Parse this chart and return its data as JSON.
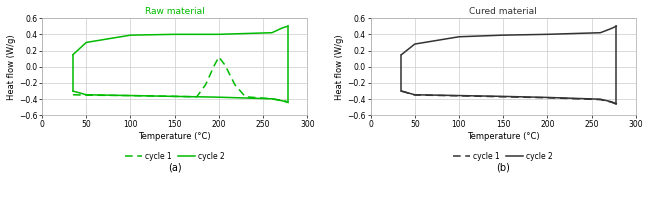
{
  "panel_a": {
    "title": "Raw material",
    "title_color": "#00bb00",
    "xlabel": "Temperature (°C)",
    "ylabel": "Heat flow (W/g)",
    "xlim": [
      0,
      300
    ],
    "ylim": [
      -0.6,
      0.6
    ],
    "xticks": [
      0,
      50,
      100,
      150,
      200,
      250,
      300
    ],
    "yticks": [
      -0.6,
      -0.4,
      -0.2,
      0,
      0.2,
      0.4,
      0.6
    ],
    "cycle1_color": "#00bb00",
    "cycle2_color": "#00bb00",
    "cycle2_upper_x": [
      35,
      50,
      100,
      150,
      200,
      260,
      272,
      278
    ],
    "cycle2_upper_y": [
      0.15,
      0.3,
      0.39,
      0.4,
      0.4,
      0.42,
      0.48,
      0.5
    ],
    "cycle2_lower_x": [
      35,
      50,
      100,
      150,
      175,
      200,
      260,
      272,
      278
    ],
    "cycle2_lower_y": [
      -0.3,
      -0.345,
      -0.355,
      -0.365,
      -0.37,
      -0.375,
      -0.395,
      -0.42,
      -0.44
    ],
    "cycle1_x": [
      35,
      50,
      100,
      150,
      175,
      185,
      195,
      200,
      207,
      218,
      230,
      260,
      275,
      278
    ],
    "cycle1_y": [
      -0.345,
      -0.35,
      -0.355,
      -0.365,
      -0.37,
      -0.22,
      0.02,
      0.12,
      0.02,
      -0.22,
      -0.37,
      -0.395,
      -0.42,
      -0.44
    ],
    "label": "(a)"
  },
  "panel_b": {
    "title": "Cured material",
    "title_color": "#333333",
    "xlabel": "Temperature (°C)",
    "ylabel": "Heat flow (W/g)",
    "xlim": [
      0,
      300
    ],
    "ylim": [
      -0.6,
      0.6
    ],
    "xticks": [
      0,
      50,
      100,
      150,
      200,
      250,
      300
    ],
    "yticks": [
      -0.6,
      -0.4,
      -0.2,
      0,
      0.2,
      0.4,
      0.6
    ],
    "cycle1_color": "#333333",
    "cycle2_color": "#333333",
    "cycle2_upper_x": [
      35,
      50,
      100,
      150,
      200,
      260,
      272,
      278
    ],
    "cycle2_upper_y": [
      0.15,
      0.28,
      0.37,
      0.39,
      0.4,
      0.42,
      0.47,
      0.5
    ],
    "cycle2_lower_x": [
      35,
      50,
      100,
      150,
      200,
      260,
      272,
      278
    ],
    "cycle2_lower_y": [
      -0.3,
      -0.345,
      -0.355,
      -0.365,
      -0.378,
      -0.4,
      -0.43,
      -0.455
    ],
    "cycle1_x": [
      35,
      50,
      100,
      150,
      200,
      260,
      272,
      278
    ],
    "cycle1_y": [
      -0.3,
      -0.348,
      -0.358,
      -0.37,
      -0.382,
      -0.405,
      -0.435,
      -0.46
    ],
    "label": "(b)"
  },
  "grid_color": "#cccccc",
  "spine_color": "#aaaaaa",
  "legend_labels": [
    "cycle 1",
    "cycle 2"
  ]
}
